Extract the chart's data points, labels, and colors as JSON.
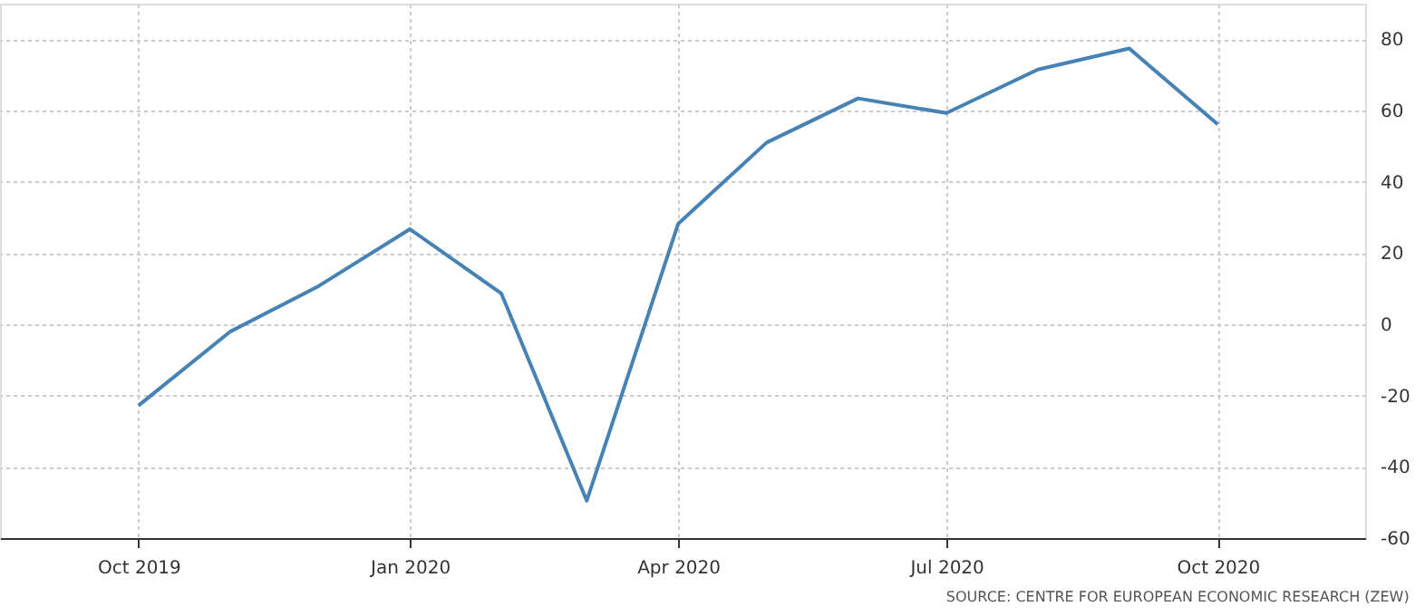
{
  "chart_data": {
    "type": "line",
    "x": [
      "2019-10",
      "2019-11",
      "2019-12",
      "2020-01",
      "2020-02",
      "2020-03",
      "2020-04",
      "2020-05",
      "2020-06",
      "2020-07",
      "2020-08",
      "2020-09",
      "2020-10"
    ],
    "series": [
      {
        "color": "#4682b4",
        "values": [
          -22.8,
          -2.1,
          10.7,
          26.7,
          8.7,
          -49.5,
          28.2,
          51.0,
          63.4,
          59.3,
          71.5,
          77.4,
          56.1
        ]
      }
    ],
    "xlim": [
      "2019-08-15",
      "2020-11-20"
    ],
    "xticks": [
      {
        "value": "2019-10",
        "label": "Oct 2019"
      },
      {
        "value": "2020-01",
        "label": "Jan 2020"
      },
      {
        "value": "2020-04",
        "label": "Apr 2020"
      },
      {
        "value": "2020-07",
        "label": "Jul 2020"
      },
      {
        "value": "2020-10",
        "label": "Oct 2020"
      }
    ],
    "ylim": [
      -60,
      90
    ],
    "yticks": [
      -60,
      -40,
      -20,
      0,
      20,
      40,
      60,
      80
    ],
    "grid": true,
    "marker": "none",
    "line_style": "solid",
    "annotations": [
      "SOURCE: CENTRE FOR EUROPEAN ECONOMIC RESEARCH (ZEW)"
    ]
  }
}
